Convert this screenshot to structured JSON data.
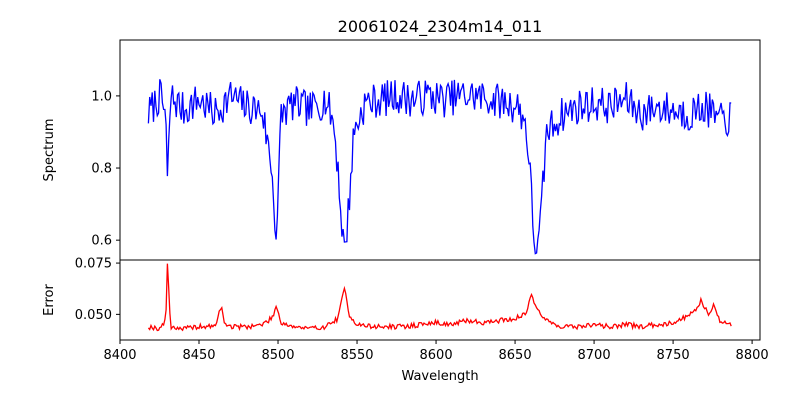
{
  "chart_data": {
    "type": "line",
    "title": "20061024_2304m14_011",
    "xlabel": "Wavelength",
    "x_ticks": [
      "8400",
      "8450",
      "8500",
      "8550",
      "8600",
      "8650",
      "8700",
      "8750",
      "8800"
    ],
    "xlim": [
      8400,
      8805
    ],
    "grid": false,
    "panels": [
      {
        "name": "spectrum-panel",
        "ylabel": "Spectrum",
        "ylim": [
          0.545,
          1.155
        ],
        "y_ticks": [
          "0.6",
          "0.8",
          "1.0"
        ],
        "color": "#0000ff",
        "series": {
          "x": [
            8418,
            8425,
            8429,
            8430,
            8432,
            8440,
            8450,
            8460,
            8470,
            8480,
            8490,
            8496,
            8499,
            8502,
            8510,
            8520,
            8530,
            8535,
            8538,
            8540,
            8542,
            8544,
            8548,
            8555,
            8565,
            8575,
            8585,
            8595,
            8605,
            8615,
            8625,
            8635,
            8645,
            8652,
            8657,
            8660,
            8662,
            8665,
            8670,
            8680,
            8690,
            8700,
            8710,
            8720,
            8730,
            8740,
            8750,
            8760,
            8770,
            8780,
            8787
          ],
          "y": [
            0.95,
            1.0,
            0.95,
            0.75,
            1.0,
            0.96,
            0.99,
            0.95,
            1.0,
            0.97,
            0.96,
            0.8,
            0.6,
            0.95,
            0.98,
            0.96,
            0.99,
            0.93,
            0.8,
            0.66,
            0.57,
            0.65,
            0.9,
            0.98,
            0.99,
            1.0,
            0.99,
            1.0,
            0.99,
            1.0,
            1.0,
            0.99,
            0.98,
            0.97,
            0.92,
            0.75,
            0.6,
            0.58,
            0.9,
            0.95,
            0.97,
            0.98,
            0.97,
            0.99,
            0.95,
            0.97,
            0.96,
            0.95,
            0.97,
            0.93,
            0.94
          ]
        }
      },
      {
        "name": "error-panel",
        "ylabel": "Error",
        "ylim": [
          0.0375,
          0.0765
        ],
        "y_ticks": [
          "0.050",
          "0.075"
        ],
        "color": "#ff0000",
        "series": {
          "x": [
            8418,
            8425,
            8429,
            8430,
            8432,
            8440,
            8450,
            8460,
            8464,
            8466,
            8470,
            8480,
            8490,
            8496,
            8499,
            8502,
            8510,
            8520,
            8530,
            8538,
            8542,
            8545,
            8550,
            8560,
            8570,
            8580,
            8590,
            8600,
            8610,
            8620,
            8630,
            8640,
            8650,
            8657,
            8660,
            8663,
            8667,
            8672,
            8680,
            8690,
            8700,
            8710,
            8720,
            8730,
            8740,
            8750,
            8756,
            8760,
            8765,
            8768,
            8772,
            8776,
            8780,
            8787
          ],
          "y": [
            0.044,
            0.043,
            0.047,
            0.075,
            0.044,
            0.043,
            0.044,
            0.044,
            0.054,
            0.046,
            0.044,
            0.044,
            0.045,
            0.048,
            0.054,
            0.046,
            0.044,
            0.043,
            0.044,
            0.048,
            0.063,
            0.05,
            0.045,
            0.044,
            0.044,
            0.044,
            0.045,
            0.046,
            0.045,
            0.047,
            0.046,
            0.047,
            0.048,
            0.05,
            0.06,
            0.055,
            0.049,
            0.046,
            0.044,
            0.044,
            0.045,
            0.044,
            0.045,
            0.044,
            0.045,
            0.046,
            0.048,
            0.05,
            0.053,
            0.057,
            0.05,
            0.055,
            0.046,
            0.045
          ]
        }
      }
    ]
  }
}
